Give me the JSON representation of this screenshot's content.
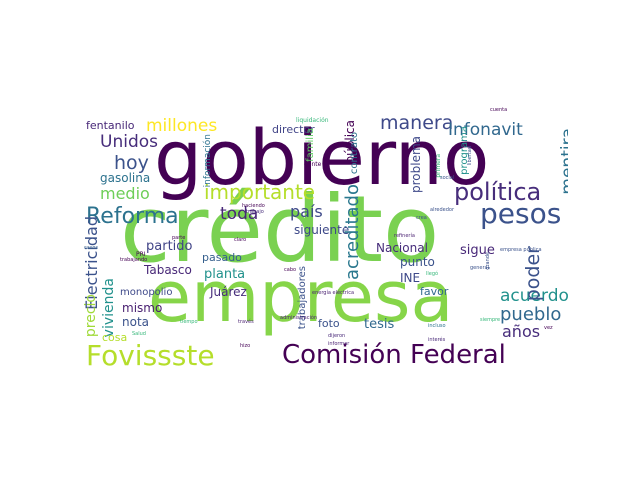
{
  "words": [
    {
      "text": "crédito",
      "color": "#7ad151"
    },
    {
      "text": "gobierno",
      "color": "#440154"
    },
    {
      "text": "empresa",
      "color": "#86d549"
    },
    {
      "text": "Comisión Federal",
      "color": "#440154"
    },
    {
      "text": "Fovissste",
      "color": "#b5de2b"
    },
    {
      "text": "Reforma",
      "color": "#2c728e"
    },
    {
      "text": "pesos",
      "color": "#3b528b"
    },
    {
      "text": "política",
      "color": "#472d7b"
    },
    {
      "text": "Electricidad",
      "color": "#3b528b"
    },
    {
      "text": "acreditado",
      "color": "#2a788e"
    },
    {
      "text": "importante",
      "color": "#b5de2b"
    },
    {
      "text": "millones",
      "color": "#fde725"
    },
    {
      "text": "manera",
      "color": "#3e4989"
    },
    {
      "text": "Infonavit",
      "color": "#31688e"
    },
    {
      "text": "Unidos",
      "color": "#472d7b"
    },
    {
      "text": "hoy",
      "color": "#3b528b"
    },
    {
      "text": "medio",
      "color": "#6ece58"
    },
    {
      "text": "toda",
      "color": "#482878"
    },
    {
      "text": "país",
      "color": "#3e4989"
    },
    {
      "text": "pueblo",
      "color": "#31688e"
    },
    {
      "text": "acuerdo",
      "color": "#21918c"
    },
    {
      "text": "poder",
      "color": "#3b528b"
    },
    {
      "text": "mentira",
      "color": "#2c728e"
    },
    {
      "text": "años",
      "color": "#472d7b"
    },
    {
      "text": "vivienda",
      "color": "#21918c"
    },
    {
      "text": "precio",
      "color": "#a0da39"
    },
    {
      "text": "fentanilo",
      "color": "#482878"
    },
    {
      "text": "gasolina",
      "color": "#2c728e"
    },
    {
      "text": "partido",
      "color": "#414487"
    },
    {
      "text": "planta",
      "color": "#21918c"
    },
    {
      "text": "pasado",
      "color": "#355f8d"
    },
    {
      "text": "Tabasco",
      "color": "#482878"
    },
    {
      "text": "Juárez",
      "color": "#472d7b"
    },
    {
      "text": "monopolio",
      "color": "#3e4989"
    },
    {
      "text": "mismo",
      "color": "#481f70"
    },
    {
      "text": "nota",
      "color": "#3b528b"
    },
    {
      "text": "cosa",
      "color": "#b5de2b"
    },
    {
      "text": "siguiente",
      "color": "#3e4989"
    },
    {
      "text": "Nacional",
      "color": "#472d7b"
    },
    {
      "text": "punto",
      "color": "#3b528b"
    },
    {
      "text": "INE",
      "color": "#3e4989"
    },
    {
      "text": "favor",
      "color": "#31688e"
    },
    {
      "text": "tesis",
      "color": "#31688e"
    },
    {
      "text": "sigue",
      "color": "#482878"
    },
    {
      "text": "foto",
      "color": "#3b528b"
    },
    {
      "text": "director",
      "color": "#414487"
    },
    {
      "text": "pública",
      "color": "#440154"
    },
    {
      "text": "problema",
      "color": "#3e4989"
    },
    {
      "text": "contrato",
      "color": "#2c728e"
    },
    {
      "text": "información",
      "color": "#2c728e"
    },
    {
      "text": "trabajadores",
      "color": "#3b528b"
    },
    {
      "text": "familia",
      "color": "#5ec962"
    },
    {
      "text": "programa",
      "color": "#21918c"
    },
    {
      "text": "liquidación",
      "color": "#35b779"
    },
    {
      "text": "gente",
      "color": "#440154"
    },
    {
      "text": "haciendo",
      "color": "#440154"
    },
    {
      "text": "trabajo",
      "color": "#472d7b"
    },
    {
      "text": "primera",
      "color": "#35b779"
    },
    {
      "text": "social",
      "color": "#3b528b"
    },
    {
      "text": "alrededor",
      "color": "#3b528b"
    },
    {
      "text": "crea",
      "color": "#3b528b"
    },
    {
      "text": "empresa pública",
      "color": "#3b528b"
    },
    {
      "text": "refinería",
      "color": "#481f70"
    },
    {
      "text": "parte",
      "color": "#440154"
    },
    {
      "text": "claro",
      "color": "#440154"
    },
    {
      "text": "casos",
      "color": "#355f8d"
    },
    {
      "text": "PRI",
      "color": "#440154"
    },
    {
      "text": "trabajando",
      "color": "#440154"
    },
    {
      "text": "tiempo",
      "color": "#35b779"
    },
    {
      "text": "través",
      "color": "#481f70"
    },
    {
      "text": "energía eléctrica",
      "color": "#481f70"
    },
    {
      "text": "administración",
      "color": "#481f70"
    },
    {
      "text": "cabo",
      "color": "#440154"
    },
    {
      "text": "llegó",
      "color": "#35b779"
    },
    {
      "text": "general",
      "color": "#3b528b"
    },
    {
      "text": "siempre",
      "color": "#35b779"
    },
    {
      "text": "interés",
      "color": "#482878"
    },
    {
      "text": "incluso",
      "color": "#2c728e"
    },
    {
      "text": "hizo",
      "color": "#440154"
    },
    {
      "text": "Salud",
      "color": "#35b779"
    },
    {
      "text": "vez",
      "color": "#440154"
    },
    {
      "text": "informar",
      "color": "#481f70"
    },
    {
      "text": "dijeron",
      "color": "#482878"
    },
    {
      "text": "cuenta",
      "color": "#440154"
    },
    {
      "text": "libertad",
      "color": "#3b528b"
    },
    {
      "text": "grande",
      "color": "#3b528b"
    }
  ]
}
